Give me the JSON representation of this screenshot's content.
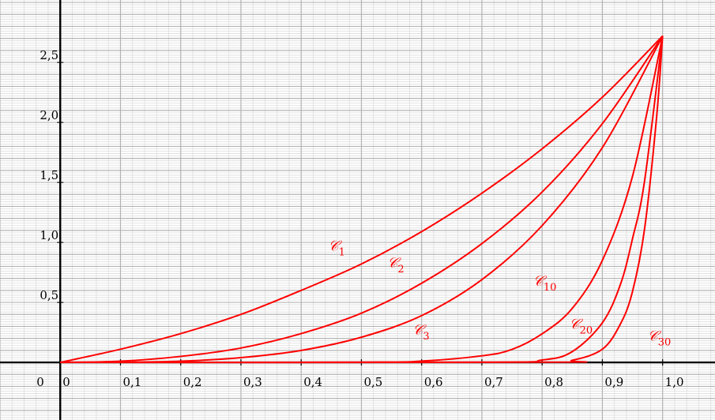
{
  "chart_data": {
    "type": "line",
    "title": "",
    "xlabel": "",
    "ylabel": "",
    "origin_label": "0",
    "xlim": [
      -0.1,
      1.087
    ],
    "ylim": [
      -0.48,
      3.02
    ],
    "x_ticks": [
      {
        "value": 0.1,
        "label": "0,1"
      },
      {
        "value": 0.2,
        "label": "0,2"
      },
      {
        "value": 0.3,
        "label": "0,3"
      },
      {
        "value": 0.4,
        "label": "0,4"
      },
      {
        "value": 0.5,
        "label": "0,5"
      },
      {
        "value": 0.6,
        "label": "0,6"
      },
      {
        "value": 0.7,
        "label": "0,7"
      },
      {
        "value": 0.8,
        "label": "0,8"
      },
      {
        "value": 0.9,
        "label": "0,9"
      },
      {
        "value": 1.0,
        "label": "1,0"
      }
    ],
    "x_zero_label": "0",
    "y_ticks": [
      {
        "value": 0.5,
        "label": "0,5"
      },
      {
        "value": 1.0,
        "label": "1,0"
      },
      {
        "value": 1.5,
        "label": "1,5"
      },
      {
        "value": 2.0,
        "label": "2,0"
      },
      {
        "value": 2.5,
        "label": "2,5"
      }
    ],
    "grid": {
      "major_step": 0.1,
      "minor_step": 0.02,
      "major_color": "#b3b3b3",
      "minor_color": "#dcdcdc"
    },
    "curve_color": "#ff0000",
    "series": [
      {
        "name": "𝒞",
        "n": 1,
        "label_at": [
          0.445,
          0.93
        ],
        "values": [
          [
            0,
            0
          ],
          [
            0.1,
            0.11
          ],
          [
            0.2,
            0.24
          ],
          [
            0.3,
            0.4
          ],
          [
            0.4,
            0.6
          ],
          [
            0.5,
            0.82
          ],
          [
            0.6,
            1.09
          ],
          [
            0.7,
            1.41
          ],
          [
            0.8,
            1.78
          ],
          [
            0.9,
            2.21
          ],
          [
            1.0,
            2.72
          ]
        ]
      },
      {
        "name": "𝒞",
        "n": 2,
        "label_at": [
          0.543,
          0.79
        ],
        "values": [
          [
            0,
            0
          ],
          [
            0.1,
            0.01
          ],
          [
            0.2,
            0.05
          ],
          [
            0.3,
            0.12
          ],
          [
            0.4,
            0.24
          ],
          [
            0.5,
            0.41
          ],
          [
            0.6,
            0.66
          ],
          [
            0.7,
            0.99
          ],
          [
            0.8,
            1.42
          ],
          [
            0.9,
            1.99
          ],
          [
            1.0,
            2.72
          ]
        ]
      },
      {
        "name": "𝒞",
        "n": 3,
        "label_at": [
          0.585,
          0.23
        ],
        "values": [
          [
            0,
            0
          ],
          [
            0.1,
            0.001
          ],
          [
            0.2,
            0.01
          ],
          [
            0.3,
            0.04
          ],
          [
            0.4,
            0.1
          ],
          [
            0.5,
            0.21
          ],
          [
            0.6,
            0.39
          ],
          [
            0.7,
            0.69
          ],
          [
            0.8,
            1.14
          ],
          [
            0.9,
            1.79
          ],
          [
            1.0,
            2.72
          ]
        ]
      },
      {
        "name": "𝒞",
        "n": 10,
        "label_at": [
          0.785,
          0.64
        ],
        "values": [
          [
            0,
            0
          ],
          [
            0.5,
            0.002
          ],
          [
            0.6,
            0.011
          ],
          [
            0.7,
            0.055
          ],
          [
            0.75,
            0.108
          ],
          [
            0.8,
            0.238
          ],
          [
            0.85,
            0.45
          ],
          [
            0.9,
            0.85
          ],
          [
            0.95,
            1.55
          ],
          [
            1.0,
            2.72
          ]
        ]
      },
      {
        "name": "𝒞",
        "n": 20,
        "label_at": [
          0.845,
          0.28
        ],
        "values": [
          [
            0,
            0
          ],
          [
            0.7,
            0.001
          ],
          [
            0.8,
            0.02
          ],
          [
            0.85,
            0.09
          ],
          [
            0.9,
            0.33
          ],
          [
            0.93,
            0.65
          ],
          [
            0.95,
            1.03
          ],
          [
            0.97,
            1.51
          ],
          [
            1.0,
            2.72
          ]
        ]
      },
      {
        "name": "𝒞",
        "n": 30,
        "label_at": [
          0.975,
          0.18
        ],
        "values": [
          [
            0,
            0
          ],
          [
            0.8,
            0.002
          ],
          [
            0.85,
            0.018
          ],
          [
            0.9,
            0.11
          ],
          [
            0.93,
            0.32
          ],
          [
            0.95,
            0.59
          ],
          [
            0.97,
            1.11
          ],
          [
            0.99,
            2.04
          ],
          [
            1.0,
            2.72
          ]
        ]
      }
    ]
  }
}
